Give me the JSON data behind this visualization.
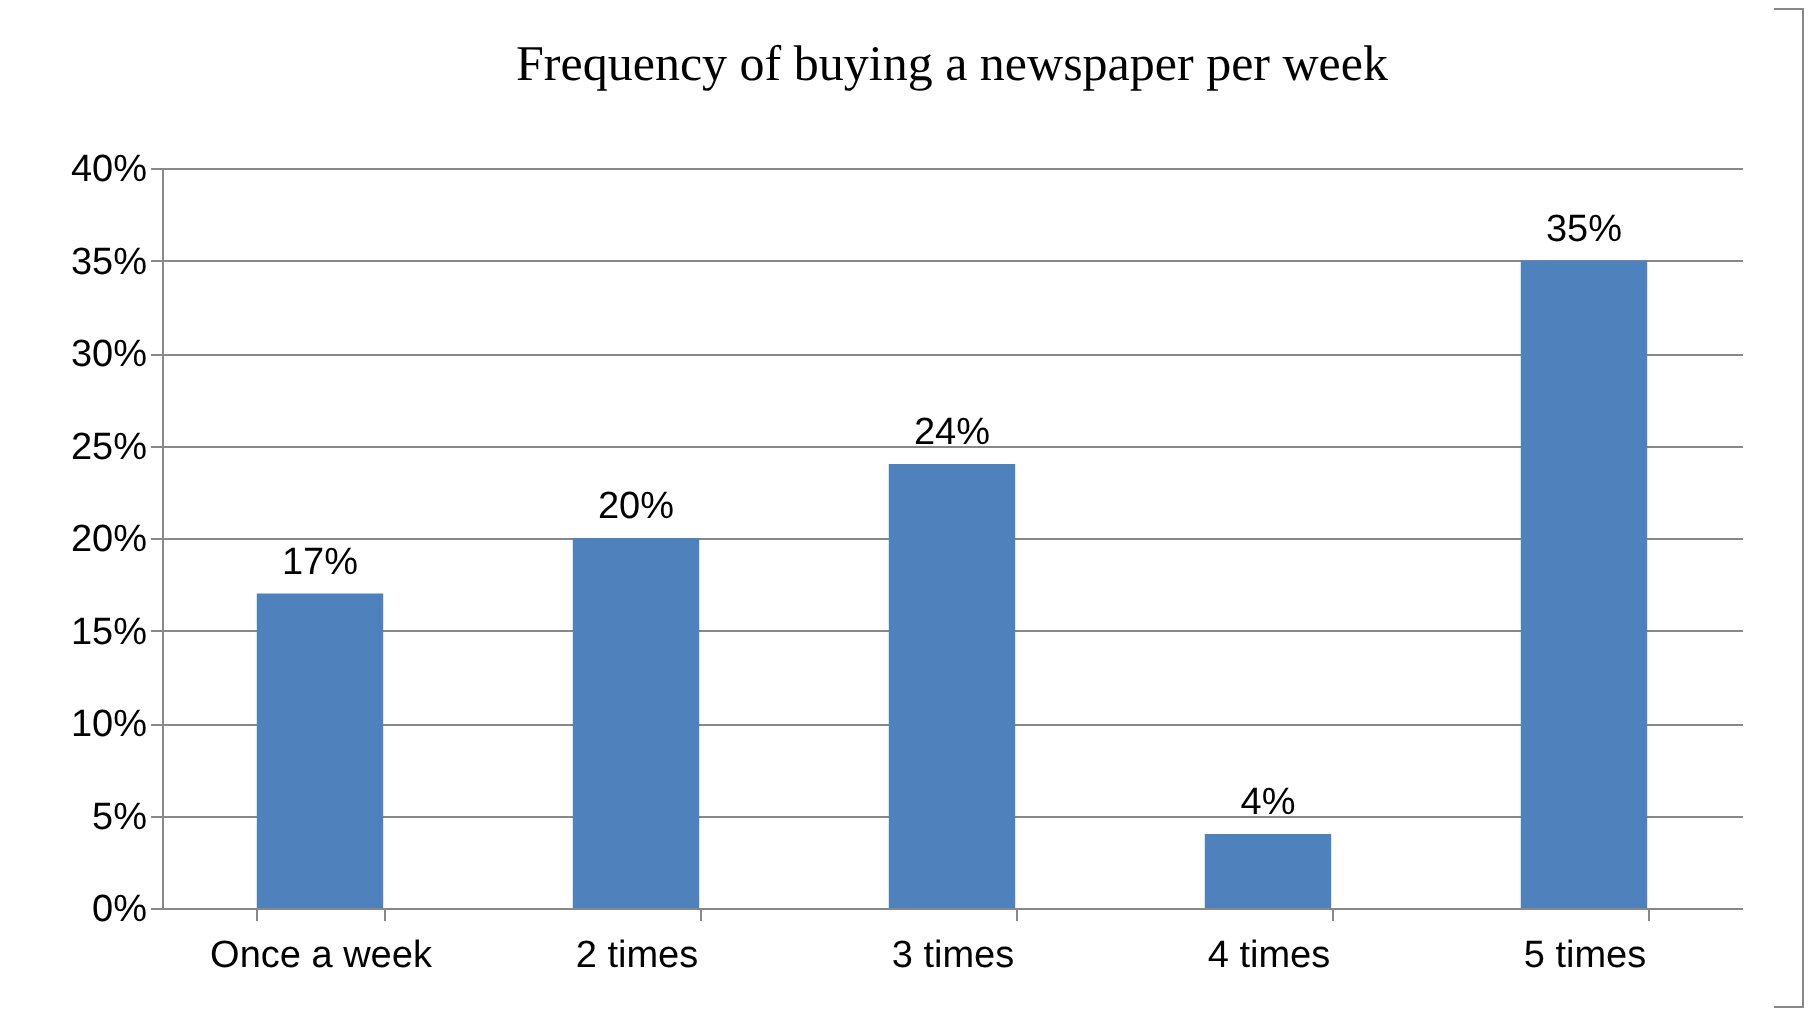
{
  "chart_data": {
    "type": "bar",
    "title": "Frequency of buying a newspaper per week",
    "categories": [
      "Once a week",
      "2 times",
      "3 times",
      "4 times",
      "5 times"
    ],
    "values": [
      17,
      20,
      24,
      4,
      35
    ],
    "value_labels": [
      "17%",
      "20%",
      "24%",
      "4%",
      "35%"
    ],
    "color": "#4f81bd",
    "ylim": [
      0,
      40
    ],
    "yticks": [
      {
        "value": 0,
        "label": "0%"
      },
      {
        "value": 5,
        "label": "5%"
      },
      {
        "value": 10,
        "label": "10%"
      },
      {
        "value": 15,
        "label": "15%"
      },
      {
        "value": 20,
        "label": "20%"
      },
      {
        "value": 25,
        "label": "25%"
      },
      {
        "value": 30,
        "label": "30%"
      },
      {
        "value": 35,
        "label": "35%"
      },
      {
        "value": 40,
        "label": "40%"
      }
    ],
    "grid": "y"
  }
}
